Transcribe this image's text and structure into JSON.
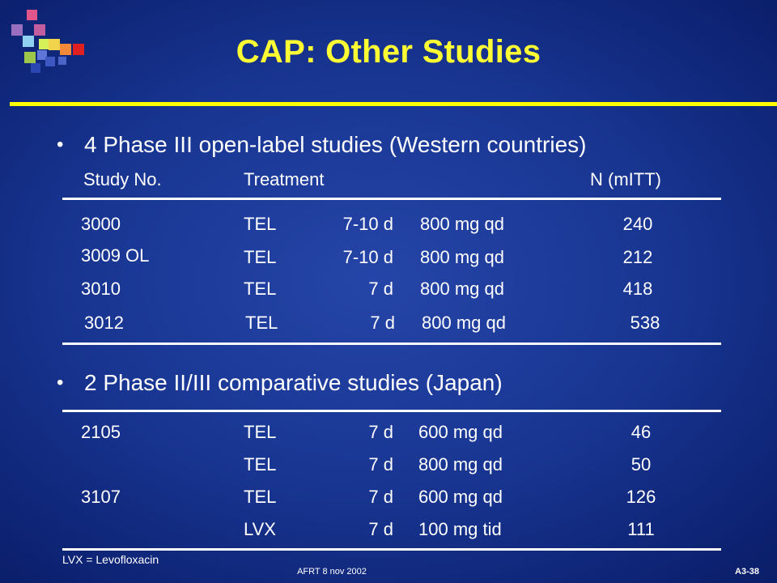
{
  "slide": {
    "title": "CAP: Other Studies",
    "colors": {
      "title": "#ffff33",
      "rule": "#ffff00",
      "background": "#183591"
    }
  },
  "section1": {
    "bullet": "4 Phase III open-label studies (Western countries)",
    "headers": {
      "study": "Study No.",
      "treatment": "Treatment",
      "n": "N (mITT)"
    },
    "rows": [
      {
        "study": "3000",
        "drug": "TEL",
        "duration": "7-10 d",
        "dose": "800 mg qd",
        "n": "240"
      },
      {
        "study": "3009 OL",
        "drug": "TEL",
        "duration": "7-10 d",
        "dose": "800 mg qd",
        "n": "212"
      },
      {
        "study": "3010",
        "drug": "TEL",
        "duration": "7 d",
        "dose": "800 mg qd",
        "n": "418"
      },
      {
        "study": "3012",
        "drug": "TEL",
        "duration": "7 d",
        "dose": "800 mg qd",
        "n": "538"
      }
    ]
  },
  "section2": {
    "bullet": "2 Phase II/III comparative studies (Japan)",
    "rows": [
      {
        "study": "2105",
        "drug": "TEL",
        "duration": "7 d",
        "dose": "600 mg qd",
        "n": "46"
      },
      {
        "study": "",
        "drug": "TEL",
        "duration": "7 d",
        "dose": "800 mg qd",
        "n": "50"
      },
      {
        "study": "3107",
        "drug": "TEL",
        "duration": "7 d",
        "dose": "600 mg qd",
        "n": "126"
      },
      {
        "study": "",
        "drug": "LVX",
        "duration": "7 d",
        "dose": "100 mg tid",
        "n": "111"
      }
    ]
  },
  "footer": {
    "note": "LVX = Levofloxacin",
    "center": "AFRT 8 nov 2002",
    "slide_id": "A3-38"
  }
}
